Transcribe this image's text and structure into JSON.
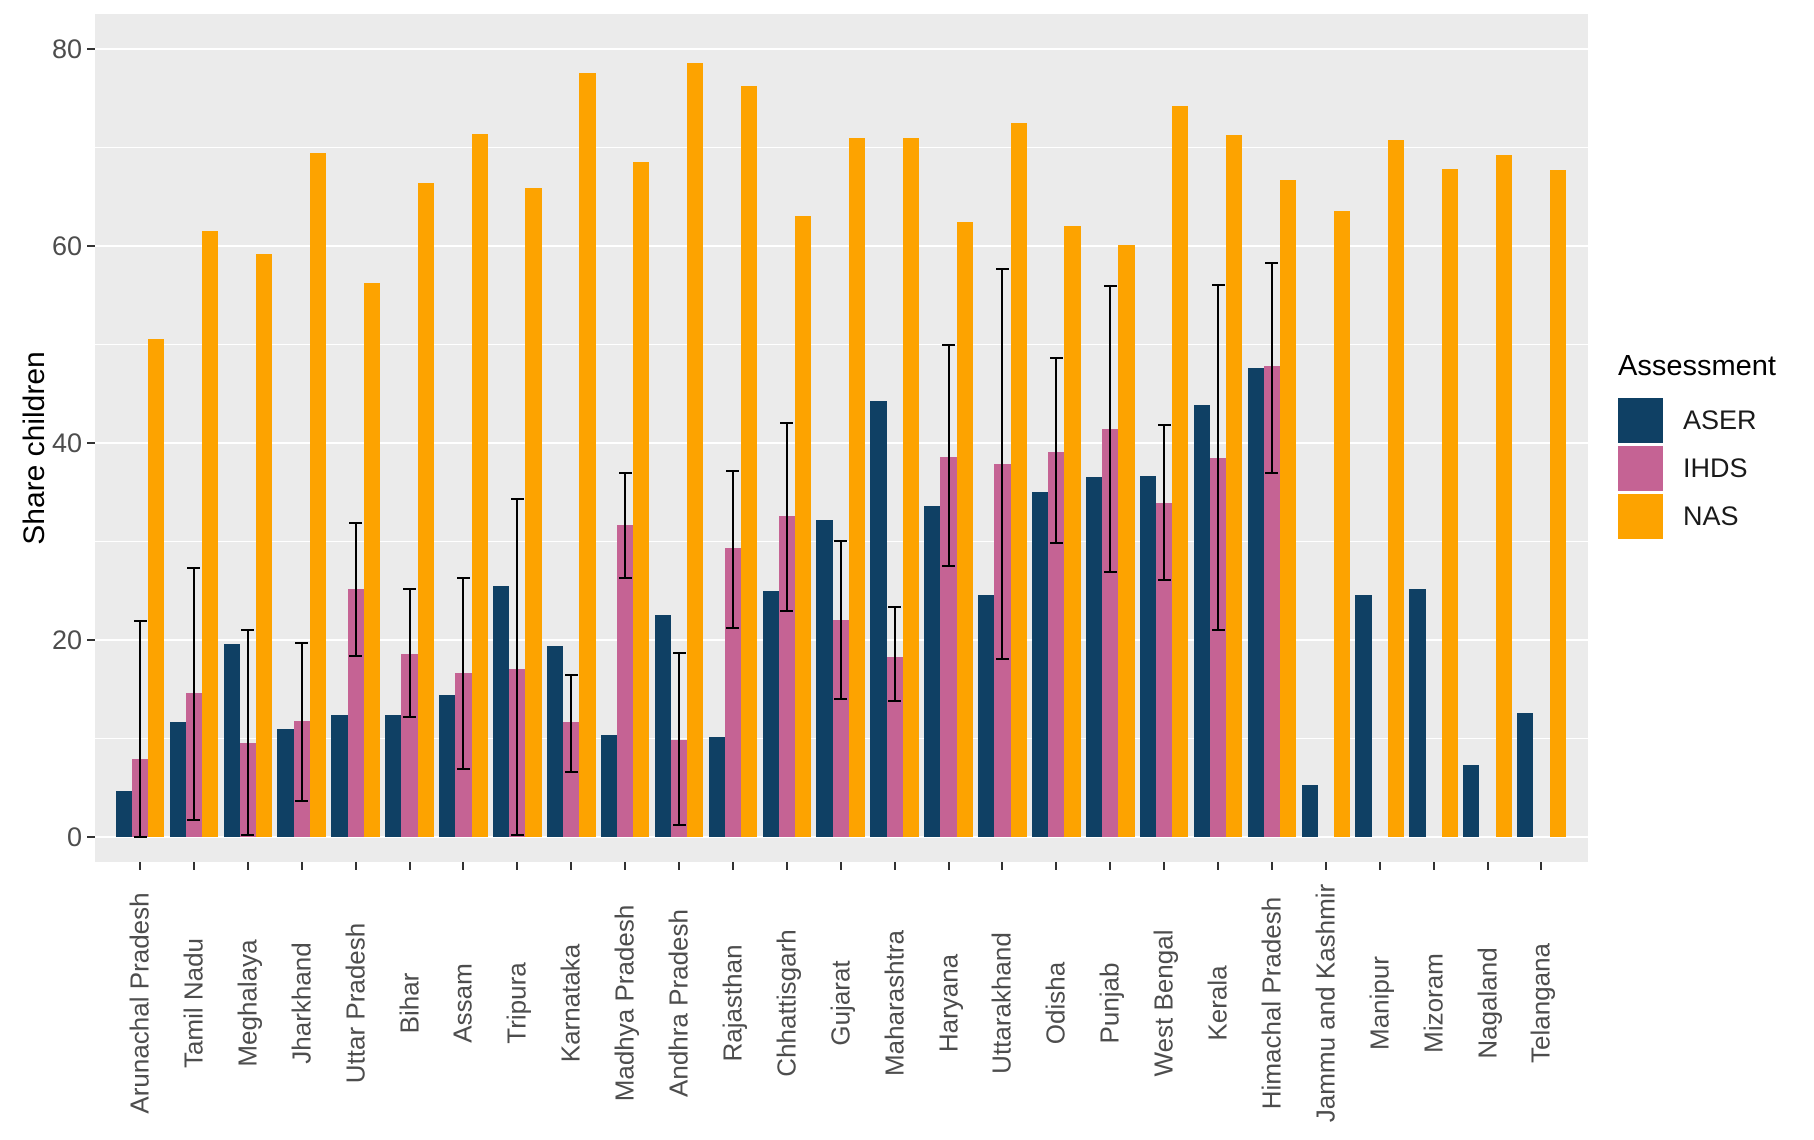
{
  "chart_data": {
    "type": "bar",
    "title": "",
    "ylabel": "Share children",
    "xlabel": "",
    "legend_title": "Assessment",
    "legend_position": "right",
    "grid": "on",
    "panel_bg": "#EBEBEB",
    "grid_color": "#FFFFFF",
    "ylim": [
      0,
      80
    ],
    "yticks": [
      0,
      20,
      40,
      60,
      80
    ],
    "minor_gridlines": [
      10,
      30,
      50,
      70
    ],
    "categories": [
      "Arunachal Pradesh",
      "Tamil Nadu",
      "Meghalaya",
      "Jharkhand",
      "Uttar Pradesh",
      "Bihar",
      "Assam",
      "Tripura",
      "Karnataka",
      "Madhya Pradesh",
      "Andhra Pradesh",
      "Rajasthan",
      "Chhattisgarh",
      "Gujarat",
      "Maharashtra",
      "Haryana",
      "Uttarakhand",
      "Odisha",
      "Punjab",
      "West Bengal",
      "Kerala",
      "Himachal Pradesh",
      "Jammu and Kashmir",
      "Manipur",
      "Mizoram",
      "Nagaland",
      "Telangana"
    ],
    "series": [
      {
        "name": "ASER",
        "color": "#0F4064",
        "values": [
          4.7,
          11.7,
          19.6,
          11.0,
          12.4,
          12.4,
          14.4,
          25.5,
          19.4,
          10.4,
          22.5,
          10.2,
          25.0,
          32.2,
          44.3,
          33.6,
          24.6,
          35.0,
          36.5,
          36.6,
          43.9,
          47.6,
          5.3,
          24.6,
          25.2,
          7.3,
          12.6
        ]
      },
      {
        "name": "IHDS",
        "color": "#C56394",
        "values": [
          7.9,
          14.6,
          9.5,
          11.8,
          25.2,
          18.6,
          16.6,
          17.1,
          11.7,
          31.7,
          9.8,
          29.3,
          32.6,
          22.0,
          18.3,
          38.6,
          37.9,
          39.1,
          41.4,
          33.9,
          38.5,
          47.8,
          null,
          null,
          null,
          null,
          null
        ]
      },
      {
        "name": "NAS",
        "color": "#FDA300",
        "values": [
          50.6,
          61.5,
          59.2,
          69.4,
          56.2,
          66.4,
          71.4,
          65.9,
          77.6,
          68.5,
          78.6,
          76.2,
          63.0,
          71.0,
          71.0,
          62.4,
          72.5,
          62.0,
          60.1,
          74.2,
          71.3,
          66.7,
          63.6,
          70.8,
          67.8,
          69.2,
          67.7
        ]
      }
    ],
    "error_bars": {
      "series": "IHDS",
      "color": "#000000",
      "low": [
        0.0,
        1.7,
        0.2,
        3.7,
        18.4,
        12.2,
        6.9,
        0.2,
        6.6,
        26.3,
        1.2,
        21.2,
        22.9,
        14.0,
        13.8,
        27.5,
        18.1,
        29.8,
        26.9,
        26.1,
        21.0,
        37.0,
        null,
        null,
        null,
        null,
        null
      ],
      "high": [
        21.9,
        27.3,
        21.0,
        19.7,
        31.9,
        25.2,
        26.3,
        34.3,
        16.4,
        37.0,
        18.7,
        37.2,
        42.0,
        30.1,
        23.4,
        49.9,
        57.7,
        48.6,
        55.9,
        41.8,
        56.0,
        58.3,
        null,
        null,
        null,
        null,
        null
      ]
    }
  },
  "axis": {
    "ytick_labels": [
      "0",
      "20",
      "40",
      "60",
      "80"
    ]
  },
  "legend": {
    "title": "Assessment",
    "items": [
      "ASER",
      "IHDS",
      "NAS"
    ]
  }
}
